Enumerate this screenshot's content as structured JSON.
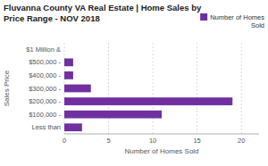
{
  "chart_data": {
    "type": "bar",
    "orientation": "horizontal",
    "title": "Fluvanna County VA Real Estate | Home Sales by\nPrice Range - NOV 2018",
    "categories": [
      "$1 Million &",
      "$500,000 -",
      "$400,000 -",
      "$300,000 -",
      "$200,000 -",
      "$100,000 -",
      "Less than"
    ],
    "series": [
      {
        "name": "Number of Homes\nSold",
        "color": "#7030a0",
        "values": [
          0,
          1,
          1,
          3,
          19,
          11,
          2
        ]
      }
    ],
    "x_label": "Number of Homes Sold",
    "y_label": "Sales Price",
    "xlim": [
      0,
      22
    ],
    "xticks": [
      0,
      5,
      10,
      15,
      20
    ],
    "grid": true,
    "legend": "upper right"
  }
}
